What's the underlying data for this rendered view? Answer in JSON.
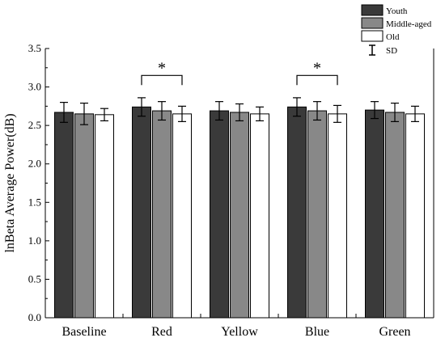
{
  "chart_data": {
    "type": "bar",
    "title": "",
    "xlabel": "",
    "ylabel": "lnBeta Average Power(dB)",
    "ylim": [
      0.0,
      3.5
    ],
    "yticks": [
      "0.0",
      "0.5",
      "1.0",
      "1.5",
      "2.0",
      "2.5",
      "3.0",
      "3.5"
    ],
    "grid": false,
    "legend_position": "top-right",
    "categories": [
      "Baseline",
      "Red",
      "Yellow",
      "Blue",
      "Green"
    ],
    "series": [
      {
        "name": "Youth",
        "color": "#3a3a3a",
        "values": [
          2.67,
          2.74,
          2.69,
          2.74,
          2.7
        ],
        "sd": [
          0.13,
          0.12,
          0.12,
          0.12,
          0.11
        ]
      },
      {
        "name": "Middle-aged",
        "color": "#888888",
        "values": [
          2.65,
          2.69,
          2.67,
          2.69,
          2.67
        ],
        "sd": [
          0.14,
          0.12,
          0.11,
          0.12,
          0.12
        ]
      },
      {
        "name": "Old",
        "color": "#ffffff",
        "values": [
          2.64,
          2.65,
          2.65,
          2.65,
          2.65
        ],
        "sd": [
          0.08,
          0.1,
          0.09,
          0.11,
          0.1
        ]
      }
    ],
    "sd_legend_label": "SD",
    "significance": [
      {
        "category": "Red",
        "from": "Youth",
        "to": "Old",
        "label": "*"
      },
      {
        "category": "Blue",
        "from": "Youth",
        "to": "Old",
        "label": "*"
      }
    ]
  }
}
